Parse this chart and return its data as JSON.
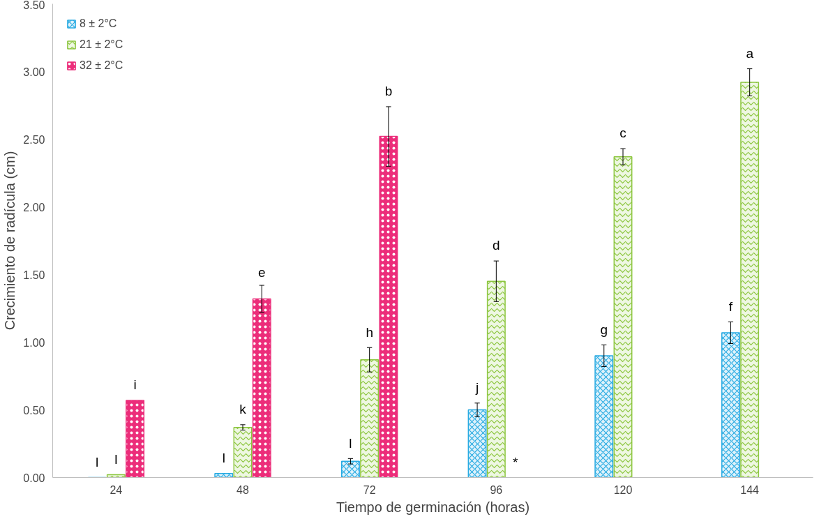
{
  "chart_data": {
    "type": "bar",
    "xlabel": "Tiempo de germinación (horas)",
    "ylabel": "Crecimiento de radícula (cm)",
    "categories": [
      "24",
      "48",
      "72",
      "96",
      "120",
      "144"
    ],
    "series": [
      {
        "name": "8 ± 2°C",
        "color": "#29abe2",
        "values": [
          0,
          0.03,
          0.12,
          0.5,
          0.9,
          1.07
        ],
        "errors": [
          null,
          null,
          0.02,
          0.05,
          0.08,
          0.08
        ],
        "value_labels": [
          "l",
          "l",
          "l",
          "j",
          "g",
          "f"
        ]
      },
      {
        "name": "21 ± 2°C",
        "color": "#8cc63f",
        "values": [
          0.02,
          0.37,
          0.87,
          1.45,
          2.37,
          2.92
        ],
        "errors": [
          null,
          0.02,
          0.09,
          0.15,
          0.06,
          0.1
        ],
        "value_labels": [
          "l",
          "k",
          "h",
          "d",
          "c",
          "a"
        ]
      },
      {
        "name": "32 ± 2°C",
        "color": "#ec2d7a",
        "values": [
          0.57,
          1.32,
          2.52,
          null,
          null,
          null
        ],
        "errors": [
          null,
          0.1,
          0.22,
          null,
          null,
          null
        ],
        "value_labels": [
          "i",
          "e",
          "b",
          "*",
          null,
          null
        ]
      }
    ],
    "ylim": [
      0,
      3.5
    ],
    "yticks": [
      {
        "value": 0,
        "label": "0.00"
      },
      {
        "value": 0.5,
        "label": "0.50"
      },
      {
        "value": 1,
        "label": "1.00"
      },
      {
        "value": 1.5,
        "label": "1.50"
      },
      {
        "value": 2,
        "label": "2.00"
      },
      {
        "value": 2.5,
        "label": "2.50"
      },
      {
        "value": 3,
        "label": "3.00"
      },
      {
        "value": 3.5,
        "label": "3.50"
      }
    ],
    "grid": false,
    "legend": "top left"
  }
}
